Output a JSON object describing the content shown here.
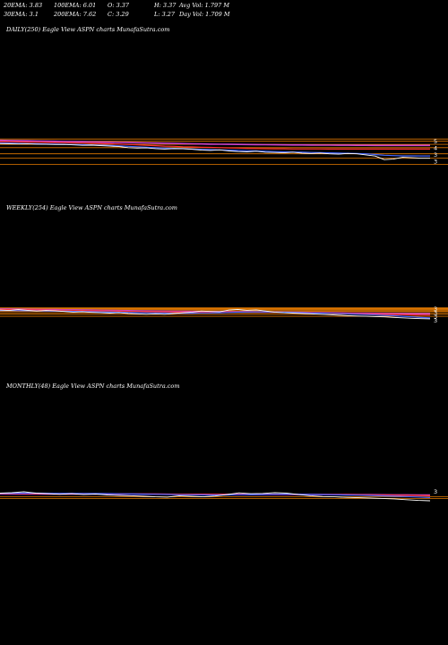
{
  "header": {
    "ema20": "20EMA: 3.83",
    "ema100": "100EMA: 6.01",
    "open": "O: 3.37",
    "high": "H: 3.37",
    "avg_vol": "Avg Vol: 1.797 M",
    "ema30": "30EMA: 3.1",
    "ema200": "200EMA: 7.62",
    "close": "C: 3.29",
    "low": "L: 3.27",
    "day_vol": "Day Vol: 1.709 M"
  },
  "colors": {
    "background": "#000000",
    "price": "#ffffff",
    "ema_fast": "#4466ff",
    "ema_mid": "#ff3333",
    "ema_slow": "#cc44cc",
    "levels": "#ff8800"
  },
  "chart_data": [
    {
      "type": "line",
      "title": "DAILY(250) Eagle   View  ASPN  charts MunafaSutra.com",
      "right_labels": [
        "5",
        "4",
        "3",
        "3"
      ],
      "price": [
        8.6,
        8.5,
        8.4,
        8.45,
        8.3,
        8.2,
        8.1,
        8.15,
        7.9,
        7.7,
        7.8,
        7.5,
        7.3,
        7.1,
        6.6,
        6.4,
        6.5,
        6.2,
        6.0,
        6.2,
        6.1,
        5.9,
        5.6,
        5.5,
        5.7,
        5.3,
        5.1,
        5.0,
        5.2,
        4.9,
        4.8,
        4.7,
        4.9,
        4.6,
        4.5,
        4.6,
        4.4,
        4.3,
        4.5,
        4.4,
        4.1,
        3.8,
        3.0,
        3.1,
        3.5,
        3.4,
        3.3,
        3.29
      ],
      "ema_fast": [
        8.9,
        8.8,
        8.7,
        8.6,
        8.5,
        8.4,
        8.3,
        8.2,
        8.1,
        8.0,
        7.9,
        7.8,
        7.6,
        7.4,
        7.2,
        7.0,
        6.8,
        6.6,
        6.4,
        6.3,
        6.2,
        6.0,
        5.9,
        5.8,
        5.7,
        5.6,
        5.5,
        5.4,
        5.3,
        5.2,
        5.1,
        5.0,
        4.95,
        4.9,
        4.8,
        4.75,
        4.7,
        4.6,
        4.55,
        4.5,
        4.4,
        4.2,
        4.0,
        3.9,
        3.85,
        3.84,
        3.83,
        3.83
      ],
      "ema_mid": [
        9.8,
        9.7,
        9.6,
        9.5,
        9.4,
        9.3,
        9.2,
        9.1,
        9.0,
        8.9,
        8.8,
        8.7,
        8.5,
        8.3,
        8.1,
        7.9,
        7.7,
        7.5,
        7.3,
        7.2,
        7.0,
        6.9,
        6.8,
        6.7,
        6.6,
        6.5,
        6.4,
        6.3,
        6.2,
        6.15,
        6.1,
        6.1,
        6.05,
        6.05,
        6.03,
        6.03,
        6.02,
        6.02,
        6.01,
        6.01,
        6.01,
        6.01,
        6.01,
        6.01,
        6.01,
        6.01,
        6.01,
        6.01
      ],
      "ema_slow": [
        10.6,
        10.5,
        10.4,
        10.3,
        10.2,
        10.1,
        10.0,
        9.9,
        9.8,
        9.7,
        9.6,
        9.5,
        9.4,
        9.3,
        9.2,
        9.1,
        9.0,
        8.9,
        8.8,
        8.7,
        8.6,
        8.5,
        8.4,
        8.3,
        8.25,
        8.2,
        8.15,
        8.1,
        8.05,
        8.0,
        7.95,
        7.9,
        7.88,
        7.85,
        7.82,
        7.8,
        7.78,
        7.75,
        7.72,
        7.7,
        7.68,
        7.66,
        7.65,
        7.64,
        7.63,
        7.62,
        7.62,
        7.62
      ],
      "levels": [
        11.6,
        10.0,
        8.2,
        6.6,
        4.4,
        3.3,
        2.2
      ],
      "ylim": [
        1.5,
        14
      ]
    },
    {
      "type": "line",
      "title": "WEEKLY(254) Eagle   View  ASPN  charts MunafaSutra.com",
      "right_labels": [
        "3",
        "3",
        "3",
        "3"
      ],
      "price": [
        14.0,
        13.0,
        15.0,
        13.5,
        12.0,
        13.0,
        12.5,
        11.0,
        10.0,
        10.5,
        9.5,
        9.0,
        8.5,
        9.0,
        8.0,
        7.5,
        7.0,
        7.5,
        7.0,
        8.0,
        9.0,
        10.0,
        12.0,
        11.0,
        10.5,
        14.0,
        15.5,
        13.5,
        14.5,
        12.0,
        10.0,
        9.0,
        8.5,
        8.0,
        7.5,
        7.0,
        6.5,
        6.0,
        5.5,
        5.2,
        5.0,
        4.8,
        4.6,
        4.2,
        3.9,
        3.6,
        3.4,
        3.29
      ],
      "ema_fast": [
        13.0,
        12.8,
        12.6,
        12.4,
        12.2,
        12.0,
        11.8,
        11.6,
        11.3,
        11.0,
        10.6,
        10.3,
        10.0,
        9.7,
        9.4,
        9.1,
        8.9,
        8.7,
        8.5,
        8.3,
        8.3,
        8.4,
        8.7,
        8.8,
        9.0,
        9.4,
        9.9,
        10.1,
        10.3,
        10.3,
        10.1,
        9.8,
        9.5,
        9.2,
        8.8,
        8.5,
        8.2,
        7.8,
        7.4,
        7.0,
        6.6,
        6.3,
        5.9,
        5.5,
        5.0,
        4.6,
        4.1,
        3.83
      ],
      "ema_mid": [
        15.0,
        14.8,
        14.6,
        14.4,
        14.2,
        14.0,
        13.7,
        13.4,
        13.1,
        12.8,
        12.5,
        12.2,
        11.9,
        11.6,
        11.3,
        11.0,
        10.8,
        10.6,
        10.4,
        10.2,
        10.1,
        10.0,
        10.0,
        10.0,
        10.0,
        10.1,
        10.2,
        10.2,
        10.2,
        10.1,
        10.0,
        9.8,
        9.6,
        9.4,
        9.1,
        8.8,
        8.5,
        8.2,
        7.9,
        7.6,
        7.3,
        7.1,
        6.9,
        6.7,
        6.5,
        6.3,
        6.1,
        6.01
      ],
      "ema_slow": [
        16.5,
        16.3,
        16.1,
        15.9,
        15.6,
        15.3,
        15.0,
        14.7,
        14.4,
        14.1,
        13.8,
        13.5,
        13.2,
        12.9,
        12.6,
        12.3,
        12.0,
        11.8,
        11.6,
        11.4,
        11.2,
        11.0,
        10.9,
        10.8,
        10.7,
        10.6,
        10.5,
        10.4,
        10.3,
        10.2,
        10.1,
        9.9,
        9.7,
        9.5,
        9.3,
        9.1,
        8.9,
        8.7,
        8.5,
        8.3,
        8.2,
        8.1,
        8.0,
        7.9,
        7.8,
        7.7,
        7.65,
        7.62
      ],
      "levels": [
        20.0,
        18.0,
        16.5,
        14.5,
        12.5,
        11.0,
        9.0,
        7.0,
        5.0
      ],
      "ylim": [
        1,
        40
      ]
    },
    {
      "type": "line",
      "title": "MONTHLY(48) Eagle   View  ASPN  charts MunafaSutra.com",
      "right_labels": [
        "3"
      ],
      "price": [
        18.0,
        20.0,
        24.0,
        18.0,
        16.0,
        14.0,
        16.0,
        13.0,
        14.5,
        12.0,
        11.0,
        10.0,
        9.0,
        8.0,
        7.5,
        10.0,
        9.0,
        8.0,
        9.5,
        13.0,
        19.0,
        16.0,
        17.0,
        20.0,
        18.0,
        13.0,
        10.0,
        8.5,
        8.0,
        7.0,
        6.5,
        6.0,
        5.5,
        5.0,
        4.2,
        3.6,
        3.29
      ],
      "ema_fast": [
        17.0,
        17.3,
        17.8,
        17.8,
        17.6,
        17.3,
        17.2,
        16.8,
        16.6,
        16.2,
        15.7,
        15.1,
        14.5,
        13.8,
        13.2,
        12.9,
        12.5,
        12.0,
        11.8,
        12.0,
        12.7,
        13.0,
        13.4,
        14.0,
        14.3,
        14.2,
        13.7,
        13.1,
        12.6,
        11.9,
        11.3,
        10.6,
        9.9,
        9.2,
        8.4,
        7.6,
        6.8
      ],
      "ema_mid": [
        16.0,
        16.1,
        16.3,
        16.4,
        16.4,
        16.3,
        16.3,
        16.2,
        16.1,
        15.9,
        15.7,
        15.4,
        15.1,
        14.8,
        14.5,
        14.3,
        14.1,
        13.8,
        13.6,
        13.5,
        13.6,
        13.6,
        13.7,
        13.8,
        13.8,
        13.7,
        13.5,
        13.3,
        13.0,
        12.7,
        12.4,
        12.1,
        11.7,
        11.3,
        10.9,
        10.4,
        10.0
      ],
      "ema_slow": [
        15.0,
        15.0,
        15.1,
        15.1,
        15.1,
        15.1,
        15.0,
        15.0,
        14.9,
        14.8,
        14.7,
        14.6,
        14.4,
        14.3,
        14.1,
        14.0,
        13.9,
        13.8,
        13.7,
        13.6,
        13.6,
        13.6,
        13.6,
        13.6,
        13.6,
        13.5,
        13.4,
        13.3,
        13.2,
        13.1,
        12.9,
        12.8,
        12.6,
        12.4,
        12.2,
        12.0,
        11.8
      ],
      "levels": [
        8.0,
        5.5
      ],
      "ylim": [
        1,
        80
      ]
    }
  ]
}
